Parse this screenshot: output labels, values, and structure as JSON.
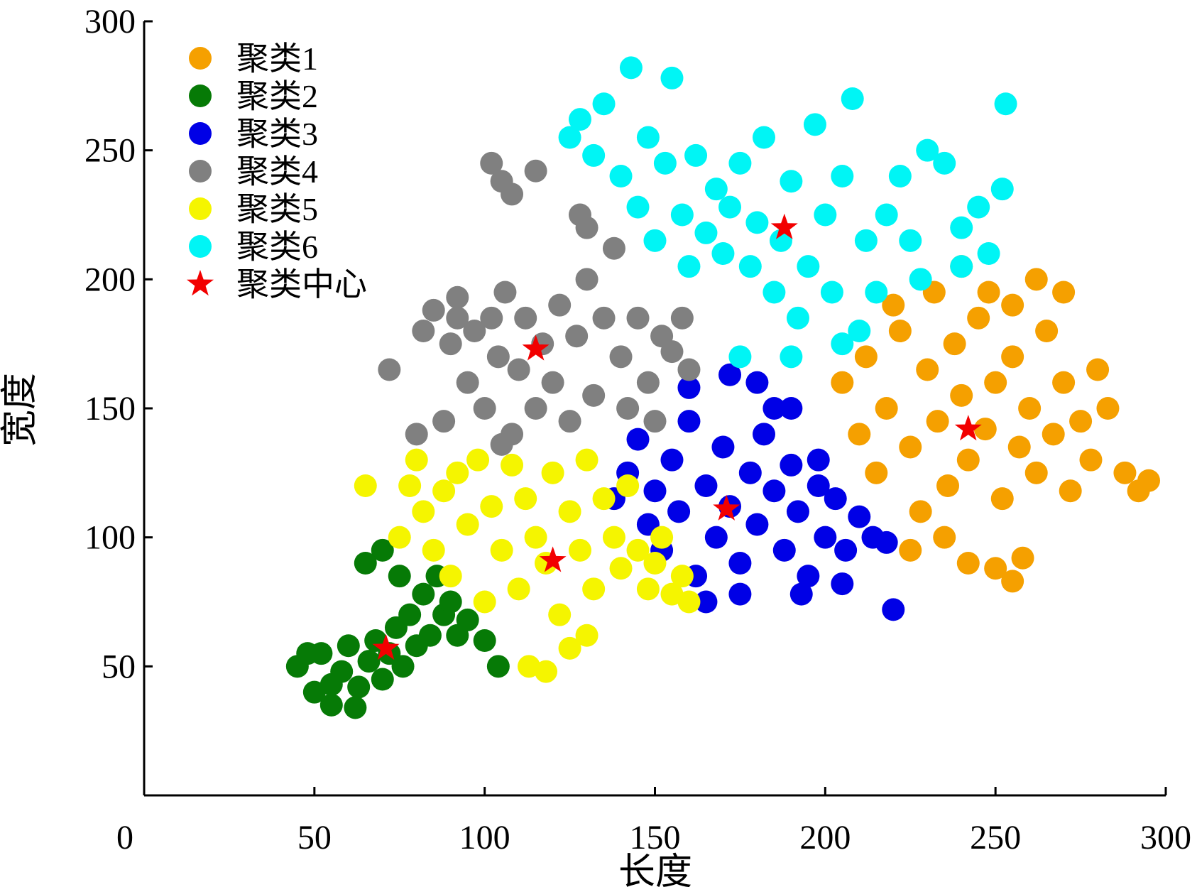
{
  "chart_data": {
    "type": "scatter",
    "title": "",
    "xlabel": "长度",
    "ylabel": "宽度",
    "xlim": [
      0,
      300
    ],
    "ylim": [
      0,
      300
    ],
    "xticks": [
      "0",
      "50",
      "100",
      "150",
      "200",
      "250",
      "300"
    ],
    "yticks": [
      "50",
      "100",
      "150",
      "200",
      "250",
      "300"
    ],
    "grid": false,
    "legend_position": "top-left",
    "series": [
      {
        "name": "聚类1",
        "color": "#F5A000",
        "points": [
          [
            205,
            160
          ],
          [
            212,
            170
          ],
          [
            218,
            150
          ],
          [
            222,
            180
          ],
          [
            225,
            135
          ],
          [
            230,
            165
          ],
          [
            233,
            145
          ],
          [
            236,
            120
          ],
          [
            238,
            175
          ],
          [
            240,
            155
          ],
          [
            242,
            130
          ],
          [
            245,
            185
          ],
          [
            247,
            142
          ],
          [
            250,
            160
          ],
          [
            252,
            115
          ],
          [
            255,
            170
          ],
          [
            257,
            135
          ],
          [
            260,
            150
          ],
          [
            262,
            125
          ],
          [
            265,
            180
          ],
          [
            267,
            140
          ],
          [
            270,
            160
          ],
          [
            272,
            118
          ],
          [
            275,
            145
          ],
          [
            278,
            130
          ],
          [
            280,
            165
          ],
          [
            283,
            150
          ],
          [
            288,
            125
          ],
          [
            292,
            118
          ],
          [
            295,
            122
          ],
          [
            242,
            90
          ],
          [
            250,
            88
          ],
          [
            258,
            92
          ],
          [
            255,
            83
          ],
          [
            262,
            200
          ],
          [
            255,
            190
          ],
          [
            248,
            195
          ],
          [
            225,
            95
          ],
          [
            235,
            100
          ],
          [
            228,
            110
          ],
          [
            215,
            125
          ],
          [
            210,
            140
          ],
          [
            220,
            190
          ],
          [
            232,
            195
          ],
          [
            270,
            195
          ],
          [
            240,
            205
          ]
        ]
      },
      {
        "name": "聚类2",
        "color": "#067A06",
        "points": [
          [
            45,
            50
          ],
          [
            50,
            40
          ],
          [
            52,
            55
          ],
          [
            55,
            35
          ],
          [
            58,
            48
          ],
          [
            60,
            58
          ],
          [
            63,
            42
          ],
          [
            66,
            52
          ],
          [
            68,
            60
          ],
          [
            70,
            45
          ],
          [
            72,
            55
          ],
          [
            74,
            65
          ],
          [
            76,
            50
          ],
          [
            78,
            70
          ],
          [
            80,
            58
          ],
          [
            82,
            78
          ],
          [
            84,
            62
          ],
          [
            86,
            85
          ],
          [
            88,
            70
          ],
          [
            90,
            75
          ],
          [
            92,
            62
          ],
          [
            95,
            68
          ],
          [
            100,
            60
          ],
          [
            104,
            50
          ],
          [
            70,
            95
          ],
          [
            65,
            90
          ],
          [
            62,
            34
          ],
          [
            55,
            43
          ],
          [
            48,
            55
          ],
          [
            75,
            85
          ]
        ]
      },
      {
        "name": "聚类3",
        "color": "#0000E6",
        "points": [
          [
            138,
            115
          ],
          [
            142,
            125
          ],
          [
            145,
            138
          ],
          [
            148,
            105
          ],
          [
            150,
            118
          ],
          [
            152,
            95
          ],
          [
            155,
            130
          ],
          [
            157,
            110
          ],
          [
            160,
            145
          ],
          [
            162,
            85
          ],
          [
            165,
            120
          ],
          [
            168,
            100
          ],
          [
            170,
            135
          ],
          [
            172,
            112
          ],
          [
            175,
            90
          ],
          [
            178,
            125
          ],
          [
            180,
            105
          ],
          [
            182,
            140
          ],
          [
            185,
            118
          ],
          [
            188,
            95
          ],
          [
            190,
            128
          ],
          [
            192,
            110
          ],
          [
            195,
            85
          ],
          [
            198,
            120
          ],
          [
            200,
            100
          ],
          [
            203,
            115
          ],
          [
            206,
            95
          ],
          [
            210,
            108
          ],
          [
            214,
            100
          ],
          [
            218,
            98
          ],
          [
            220,
            72
          ],
          [
            190,
            150
          ],
          [
            180,
            160
          ],
          [
            172,
            163
          ],
          [
            160,
            158
          ],
          [
            165,
            75
          ],
          [
            175,
            78
          ],
          [
            193,
            78
          ],
          [
            205,
            82
          ],
          [
            198,
            130
          ],
          [
            185,
            150
          ]
        ]
      },
      {
        "name": "聚类4",
        "color": "#808080",
        "points": [
          [
            80,
            140
          ],
          [
            82,
            180
          ],
          [
            85,
            188
          ],
          [
            88,
            145
          ],
          [
            90,
            175
          ],
          [
            92,
            193
          ],
          [
            95,
            160
          ],
          [
            97,
            180
          ],
          [
            100,
            150
          ],
          [
            102,
            185
          ],
          [
            104,
            170
          ],
          [
            106,
            195
          ],
          [
            108,
            140
          ],
          [
            110,
            165
          ],
          [
            112,
            185
          ],
          [
            115,
            150
          ],
          [
            117,
            175
          ],
          [
            120,
            160
          ],
          [
            122,
            190
          ],
          [
            125,
            145
          ],
          [
            127,
            178
          ],
          [
            130,
            200
          ],
          [
            132,
            155
          ],
          [
            135,
            185
          ],
          [
            138,
            212
          ],
          [
            140,
            170
          ],
          [
            142,
            150
          ],
          [
            145,
            185
          ],
          [
            148,
            160
          ],
          [
            150,
            145
          ],
          [
            152,
            178
          ],
          [
            155,
            172
          ],
          [
            158,
            185
          ],
          [
            160,
            165
          ],
          [
            102,
            245
          ],
          [
            105,
            238
          ],
          [
            108,
            233
          ],
          [
            115,
            242
          ],
          [
            128,
            225
          ],
          [
            130,
            220
          ],
          [
            72,
            165
          ],
          [
            105,
            136
          ],
          [
            92,
            185
          ]
        ]
      },
      {
        "name": "聚类5",
        "color": "#F5F500",
        "points": [
          [
            65,
            120
          ],
          [
            75,
            100
          ],
          [
            78,
            120
          ],
          [
            80,
            130
          ],
          [
            82,
            110
          ],
          [
            85,
            95
          ],
          [
            88,
            118
          ],
          [
            90,
            85
          ],
          [
            92,
            125
          ],
          [
            95,
            105
          ],
          [
            98,
            130
          ],
          [
            100,
            75
          ],
          [
            102,
            112
          ],
          [
            105,
            95
          ],
          [
            108,
            128
          ],
          [
            110,
            80
          ],
          [
            112,
            115
          ],
          [
            115,
            100
          ],
          [
            118,
            90
          ],
          [
            120,
            125
          ],
          [
            122,
            70
          ],
          [
            125,
            110
          ],
          [
            128,
            95
          ],
          [
            130,
            130
          ],
          [
            132,
            80
          ],
          [
            135,
            115
          ],
          [
            138,
            100
          ],
          [
            140,
            88
          ],
          [
            142,
            120
          ],
          [
            145,
            95
          ],
          [
            148,
            80
          ],
          [
            150,
            90
          ],
          [
            152,
            100
          ],
          [
            155,
            78
          ],
          [
            158,
            85
          ],
          [
            160,
            75
          ],
          [
            113,
            50
          ],
          [
            118,
            48
          ],
          [
            125,
            57
          ],
          [
            130,
            62
          ]
        ]
      },
      {
        "name": "聚类6",
        "color": "#00F5F5",
        "points": [
          [
            125,
            255
          ],
          [
            128,
            262
          ],
          [
            132,
            248
          ],
          [
            135,
            268
          ],
          [
            140,
            240
          ],
          [
            143,
            282
          ],
          [
            145,
            228
          ],
          [
            148,
            255
          ],
          [
            150,
            215
          ],
          [
            153,
            245
          ],
          [
            155,
            278
          ],
          [
            158,
            225
          ],
          [
            160,
            205
          ],
          [
            162,
            248
          ],
          [
            165,
            218
          ],
          [
            168,
            235
          ],
          [
            170,
            210
          ],
          [
            172,
            228
          ],
          [
            175,
            245
          ],
          [
            178,
            205
          ],
          [
            180,
            222
          ],
          [
            182,
            255
          ],
          [
            185,
            195
          ],
          [
            187,
            215
          ],
          [
            190,
            238
          ],
          [
            192,
            185
          ],
          [
            195,
            205
          ],
          [
            197,
            260
          ],
          [
            200,
            225
          ],
          [
            202,
            195
          ],
          [
            205,
            240
          ],
          [
            208,
            270
          ],
          [
            210,
            180
          ],
          [
            212,
            215
          ],
          [
            215,
            195
          ],
          [
            218,
            225
          ],
          [
            222,
            240
          ],
          [
            225,
            215
          ],
          [
            228,
            200
          ],
          [
            230,
            250
          ],
          [
            235,
            245
          ],
          [
            240,
            220
          ],
          [
            245,
            228
          ],
          [
            248,
            210
          ],
          [
            252,
            235
          ],
          [
            253,
            268
          ],
          [
            240,
            205
          ],
          [
            175,
            170
          ],
          [
            190,
            170
          ],
          [
            205,
            175
          ]
        ]
      }
    ],
    "centers": {
      "name": "聚类中心",
      "color": "#F20000",
      "points": [
        [
          188,
          220
        ],
        [
          242,
          142
        ],
        [
          115,
          173
        ],
        [
          171,
          111
        ],
        [
          120,
          91
        ],
        [
          71,
          57
        ]
      ]
    }
  }
}
